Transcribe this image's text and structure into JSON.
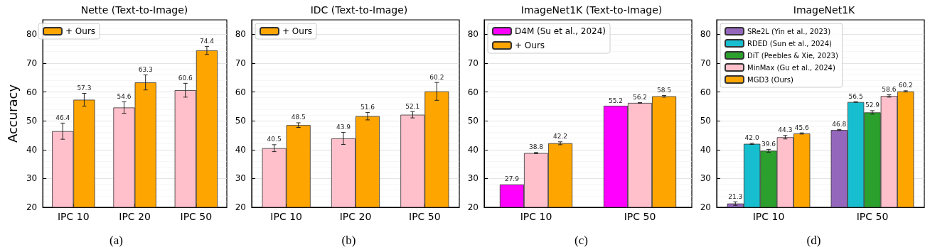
{
  "chart_data": [
    {
      "type": "bar",
      "title": "Nette (Text-to-Image)",
      "ylabel": "Accuracy",
      "categories": [
        "IPC 10",
        "IPC 20",
        "IPC 50"
      ],
      "series": [
        {
          "color": "#ffc0cb",
          "values": [
            46.4,
            54.6,
            60.6
          ],
          "errors": [
            2.8,
            2,
            2.4
          ],
          "value_labels": [
            "46.4",
            "54.6",
            "60.6"
          ]
        },
        {
          "name": "+ Ours",
          "color": "#ffa500",
          "values": [
            57.3,
            63.3,
            74.4
          ],
          "errors": [
            2.2,
            2.6,
            1.4
          ],
          "value_labels": [
            "57.3",
            "63.3",
            "74.4"
          ]
        }
      ],
      "ylim": [
        20,
        85
      ],
      "yticks": [
        20,
        30,
        40,
        50,
        60,
        70,
        80
      ],
      "grid": true,
      "legend": "top left",
      "annotations": [
        "(a)"
      ]
    },
    {
      "type": "bar",
      "title": "IDC (Text-to-Image)",
      "categories": [
        "IPC 10",
        "IPC 20",
        "IPC 50"
      ],
      "series": [
        {
          "color": "#ffc0cb",
          "values": [
            40.5,
            43.9,
            52.1
          ],
          "errors": [
            1.2,
            2.1,
            1.1
          ],
          "value_labels": [
            "40.5",
            "43.9",
            "52.1"
          ]
        },
        {
          "name": "+ Ours",
          "color": "#ffa500",
          "values": [
            48.5,
            51.6,
            60.2
          ],
          "errors": [
            0.8,
            1.3,
            3.1
          ],
          "value_labels": [
            "48.5",
            "51.6",
            "60.2"
          ]
        }
      ],
      "ylim": [
        20,
        85
      ],
      "yticks": [
        20,
        30,
        40,
        50,
        60,
        70,
        80
      ],
      "grid": true,
      "legend": "top left",
      "annotations": [
        "(b)"
      ]
    },
    {
      "type": "bar",
      "title": "ImageNet1K (Text-to-Image)",
      "categories": [
        "IPC 10",
        "IPC 50"
      ],
      "series": [
        {
          "name": "D4M (Su et al., 2024)",
          "color": "#ff00ff",
          "values": [
            27.9,
            55.2
          ],
          "errors": [
            null,
            null
          ],
          "value_labels": [
            "27.9",
            "55.2"
          ]
        },
        {
          "color": "#ffc0cb",
          "values": [
            38.8,
            56.2
          ],
          "errors": [
            0.2,
            0.1
          ],
          "value_labels": [
            "38.8",
            "56.2"
          ]
        },
        {
          "name": "+ Ours",
          "color": "#ffa500",
          "values": [
            42.2,
            58.5
          ],
          "errors": [
            0.5,
            0.3
          ],
          "value_labels": [
            "42.2",
            "58.5"
          ]
        }
      ],
      "ylim": [
        20,
        85
      ],
      "yticks": [
        20,
        30,
        40,
        50,
        60,
        70,
        80
      ],
      "grid": true,
      "legend": "top left",
      "annotations": [
        "(c)"
      ]
    },
    {
      "type": "bar",
      "title": "ImageNet1K",
      "categories": [
        "IPC 10",
        "IPC 50"
      ],
      "series": [
        {
          "name": "SRe2L (Yin et al., 2023)",
          "color": "#9467bd",
          "values": [
            21.3,
            46.8
          ],
          "errors": [
            0.6,
            0.2
          ],
          "value_labels": [
            "21.3",
            "46.8"
          ]
        },
        {
          "name": "RDED (Sun et al., 2024)",
          "color": "#17becf",
          "values": [
            42.0,
            56.5
          ],
          "errors": [
            0.2,
            0.1
          ],
          "value_labels": [
            "42.0",
            "56.5"
          ]
        },
        {
          "name": "DiT (Peebles & Xie, 2023)",
          "color": "#2ca02c",
          "values": [
            39.6,
            52.9
          ],
          "errors": [
            0.5,
            0.6
          ],
          "value_labels": [
            "39.6",
            "52.9"
          ]
        },
        {
          "name": "MinMax (Gu et al., 2024)",
          "color": "#ffc0cb",
          "values": [
            44.3,
            58.6
          ],
          "errors": [
            0.6,
            0.4
          ],
          "value_labels": [
            "44.3",
            "58.6"
          ]
        },
        {
          "name": "MGD3 (Ours)",
          "color": "#ffa500",
          "values": [
            45.6,
            60.2
          ],
          "errors": [
            0.2,
            0.2
          ],
          "value_labels": [
            "45.6",
            "60.2"
          ]
        }
      ],
      "ylim": [
        20,
        85
      ],
      "yticks": [
        20,
        30,
        40,
        50,
        60,
        70,
        80
      ],
      "grid": true,
      "legend": "top left",
      "annotations": [
        "(d)"
      ]
    }
  ]
}
